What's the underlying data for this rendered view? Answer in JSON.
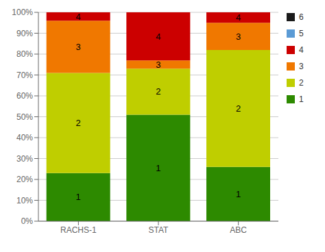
{
  "chart_data": {
    "type": "bar",
    "stacked": true,
    "categories": [
      "RACHS-1",
      "STAT",
      "ABC"
    ],
    "series": [
      {
        "name": "1",
        "color": "#2d8a00",
        "values": [
          23,
          51,
          26
        ]
      },
      {
        "name": "2",
        "color": "#bfce00",
        "values": [
          48,
          22,
          56
        ]
      },
      {
        "name": "3",
        "color": "#f07800",
        "values": [
          25,
          4,
          13
        ]
      },
      {
        "name": "4",
        "color": "#cc0000",
        "values": [
          4,
          23,
          5
        ]
      },
      {
        "name": "5",
        "color": "#5b9bd5",
        "values": [
          0,
          0,
          0
        ]
      },
      {
        "name": "6",
        "color": "#1a1a1a",
        "values": [
          0,
          0,
          0
        ]
      }
    ],
    "ylim": [
      0,
      100
    ],
    "yticks": [
      {
        "value": 0,
        "label": "0%"
      },
      {
        "value": 10,
        "label": "10%"
      },
      {
        "value": 20,
        "label": "20%"
      },
      {
        "value": 30,
        "label": "30%"
      },
      {
        "value": 40,
        "label": "40%"
      },
      {
        "value": 50,
        "label": "50%"
      },
      {
        "value": 60,
        "label": "60%"
      },
      {
        "value": 70,
        "label": "70%"
      },
      {
        "value": 80,
        "label": "80%"
      },
      {
        "value": 90,
        "label": "90%"
      },
      {
        "value": 100,
        "label": "100%"
      }
    ],
    "grid": true,
    "legend": "right"
  }
}
